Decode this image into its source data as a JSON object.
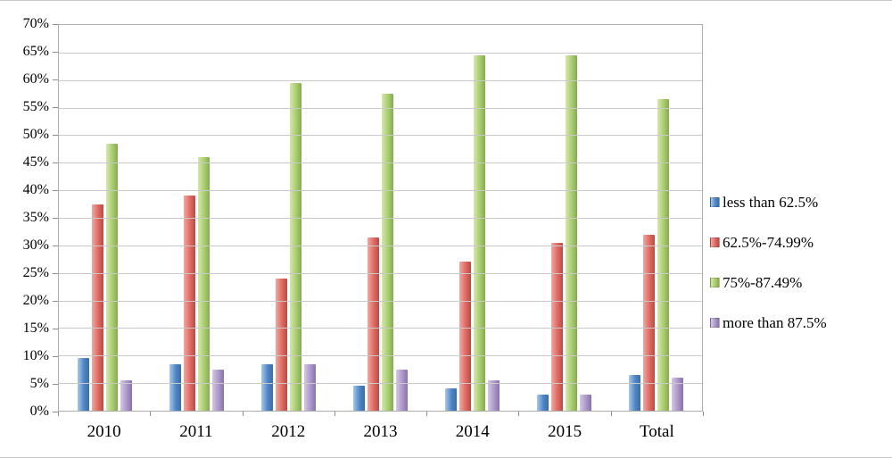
{
  "figure": {
    "background": "#ffffff"
  },
  "chart_data": {
    "type": "bar",
    "title": "",
    "xlabel": "",
    "ylabel": "",
    "grid": true,
    "legend_position": "right",
    "ylim": [
      0,
      70
    ],
    "ytick_step": 5,
    "yticks": [
      "0%",
      "5%",
      "10%",
      "15%",
      "20%",
      "25%",
      "30%",
      "35%",
      "40%",
      "45%",
      "50%",
      "55%",
      "60%",
      "65%",
      "70%"
    ],
    "categories": [
      "2010",
      "2011",
      "2012",
      "2013",
      "2014",
      "2015",
      "Total"
    ],
    "series": [
      {
        "name": "less than 62.5%",
        "color": "#4f86c6",
        "color_light": "#a7c8ea",
        "color_dark": "#3a6ea5",
        "values": [
          9.5,
          8.5,
          8.5,
          4.5,
          4,
          3,
          6.5
        ]
      },
      {
        "name": "62.5%-74.99%",
        "color": "#dd6b63",
        "color_light": "#f0a9a3",
        "color_dark": "#b94a43",
        "values": [
          37.5,
          39,
          24,
          31.5,
          27,
          30.5,
          32
        ]
      },
      {
        "name": "75%-87.49%",
        "color": "#a8cc70",
        "color_light": "#d6e7ab",
        "color_dark": "#86ab4f",
        "values": [
          48.5,
          46,
          59.5,
          57.5,
          64.5,
          64.5,
          56.5
        ]
      },
      {
        "name": "more than 87.5%",
        "color": "#ab97c8",
        "color_light": "#d4c9e3",
        "color_dark": "#8a70ab",
        "values": [
          5.5,
          7.5,
          8.5,
          7.5,
          5.5,
          3,
          6
        ]
      }
    ]
  }
}
